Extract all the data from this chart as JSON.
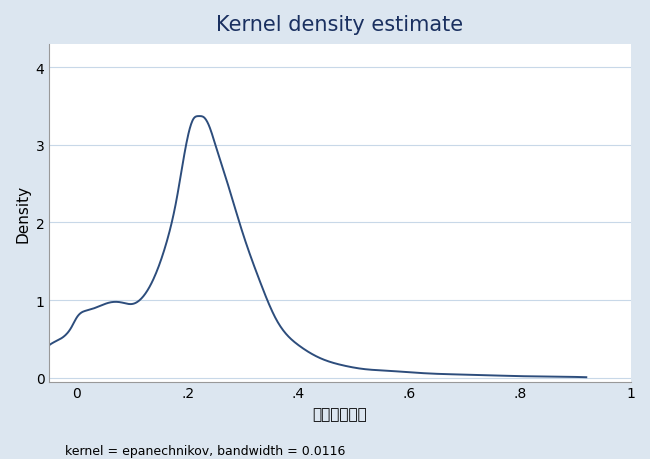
{
  "title": "Kernel density estimate",
  "xlabel": "労働生産性２",
  "ylabel": "Density",
  "footnote": "kernel = epanechnikov, bandwidth = 0.0116",
  "line_color": "#2d4d7c",
  "background_color": "#dce6f0",
  "plot_bg_color": "#ffffff",
  "grid_color": "#c8d8e8",
  "xlim": [
    -0.05,
    1.0
  ],
  "ylim": [
    -0.05,
    4.3
  ],
  "xticks": [
    0,
    0.2,
    0.4,
    0.6,
    0.8,
    1.0
  ],
  "xtick_labels": [
    "0",
    ".2",
    ".4",
    ".6",
    ".8",
    "1"
  ],
  "yticks": [
    0,
    1,
    2,
    3,
    4
  ],
  "ytick_labels": [
    "0",
    "1",
    "2",
    "3",
    "4"
  ],
  "title_fontsize": 15,
  "label_fontsize": 11,
  "tick_fontsize": 10,
  "footnote_fontsize": 9,
  "curve_x": [
    -0.05,
    -0.03,
    -0.01,
    0.0,
    0.02,
    0.04,
    0.06,
    0.08,
    0.1,
    0.12,
    0.14,
    0.16,
    0.18,
    0.2,
    0.21,
    0.22,
    0.23,
    0.24,
    0.25,
    0.27,
    0.3,
    0.33,
    0.36,
    0.4,
    0.44,
    0.48,
    0.52,
    0.56,
    0.6,
    0.65,
    0.7,
    0.75,
    0.8,
    0.85,
    0.9
  ],
  "curve_y": [
    0.42,
    0.5,
    0.65,
    0.78,
    0.87,
    0.92,
    0.97,
    0.97,
    0.95,
    1.05,
    1.3,
    1.7,
    2.3,
    3.1,
    3.33,
    3.37,
    3.35,
    3.22,
    3.0,
    2.55,
    1.85,
    1.25,
    0.75,
    0.42,
    0.25,
    0.16,
    0.11,
    0.09,
    0.07,
    0.05,
    0.04,
    0.03,
    0.02,
    0.015,
    0.01
  ]
}
